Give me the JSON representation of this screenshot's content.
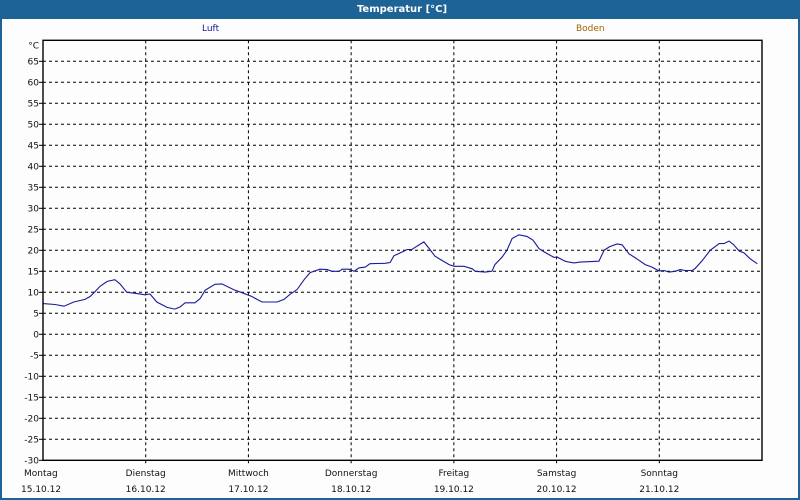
{
  "window": {
    "title": "Temperatur [°C]",
    "colors": {
      "titlebar": "#1d6396",
      "luft": "#1a1a9a",
      "boden": "#a0650a",
      "background": "#fcfdfc"
    }
  },
  "legend": {
    "luft": "Luft",
    "boden": "Boden"
  },
  "chart_data": {
    "type": "line",
    "title": "Temperatur [°C]",
    "xlabel": "",
    "ylabel": "°C",
    "ylim": [
      -30,
      70
    ],
    "yticks": [
      65,
      60,
      55,
      50,
      45,
      40,
      35,
      30,
      25,
      20,
      15,
      10,
      5,
      0,
      -5,
      -10,
      -15,
      -20,
      -25,
      -30
    ],
    "x_unit": "hours since Montag 15.10.12 00:00",
    "xlim": [
      0,
      168
    ],
    "grid": true,
    "legend_position": "top",
    "categories": [
      {
        "day": "Montag",
        "date": "15.10.12"
      },
      {
        "day": "Dienstag",
        "date": "16.10.12"
      },
      {
        "day": "Mittwoch",
        "date": "17.10.12"
      },
      {
        "day": "Donnerstag",
        "date": "18.10.12"
      },
      {
        "day": "Freitag",
        "date": "19.10.12"
      },
      {
        "day": "Samstag",
        "date": "20.10.12"
      },
      {
        "day": "Sonntag",
        "date": "21.10.12"
      }
    ],
    "series": [
      {
        "name": "Luft",
        "color": "#1a1a9a",
        "x": [
          0,
          2.8,
          4.9,
          7.2,
          9.8,
          11.0,
          12.2,
          13.3,
          15.0,
          16.8,
          18.0,
          19.6,
          22.0,
          23.8,
          25.0,
          26.6,
          29.0,
          30.8,
          32.0,
          33.2,
          35.5,
          36.7,
          37.9,
          40.2,
          41.8,
          44.6,
          46.5,
          48.8,
          50.0,
          51.2,
          54.7,
          56.3,
          57.7,
          59.4,
          61.0,
          62.4,
          64.7,
          66.4,
          67.5,
          69.2,
          69.9,
          71.5,
          72.7,
          73.8,
          75.3,
          76.4,
          79.9,
          81.1,
          82.0,
          83.9,
          85.1,
          86.2,
          87.4,
          89.0,
          90.4,
          91.6,
          93.2,
          94.9,
          96.1,
          98.4,
          100.3,
          101.0,
          103.3,
          104.9,
          105.6,
          107.3,
          108.4,
          109.6,
          111.2,
          113.1,
          114.5,
          115.9,
          117.3,
          119.4,
          120.1,
          122.0,
          122.9,
          124.1,
          125.5,
          129.9,
          131.1,
          132.3,
          134.1,
          135.3,
          136.9,
          139.3,
          140.7,
          142.3,
          143.9,
          145.1,
          146.3,
          147.7,
          148.9,
          150.0,
          151.7,
          152.4,
          154.0,
          155.9,
          158.0,
          159.1,
          160.3,
          161.3,
          162.7,
          163.8,
          165.2,
          166.9
        ],
        "values": [
          7.3,
          7.1,
          6.7,
          7.7,
          8.3,
          9.0,
          10.2,
          11.4,
          12.6,
          13.0,
          12.0,
          10.0,
          9.7,
          9.4,
          9.6,
          7.7,
          6.4,
          6.0,
          6.5,
          7.5,
          7.5,
          8.5,
          10.5,
          11.9,
          12.0,
          10.6,
          9.9,
          9.0,
          8.3,
          7.7,
          7.7,
          8.3,
          9.5,
          10.7,
          13.0,
          14.7,
          15.5,
          15.4,
          15.0,
          15.0,
          15.5,
          15.5,
          15.0,
          15.8,
          16.0,
          16.8,
          16.9,
          17.1,
          18.7,
          19.6,
          20.2,
          20.2,
          21.0,
          22.0,
          20.2,
          18.6,
          17.6,
          16.6,
          16.2,
          16.2,
          15.6,
          15.0,
          14.8,
          15.0,
          16.6,
          18.4,
          20.0,
          22.8,
          23.7,
          23.3,
          22.4,
          20.4,
          19.5,
          18.3,
          18.4,
          17.4,
          17.2,
          17.0,
          17.2,
          17.4,
          20.0,
          20.8,
          21.5,
          21.3,
          19.2,
          17.6,
          16.6,
          16.0,
          15.1,
          15.2,
          14.8,
          15.0,
          15.4,
          15.2,
          15.2,
          15.7,
          17.5,
          20.0,
          21.6,
          21.6,
          22.2,
          21.4,
          19.8,
          19.4,
          18.0,
          16.8
        ]
      },
      {
        "name": "Boden",
        "color": "#a0650a",
        "x": [],
        "values": []
      }
    ]
  }
}
